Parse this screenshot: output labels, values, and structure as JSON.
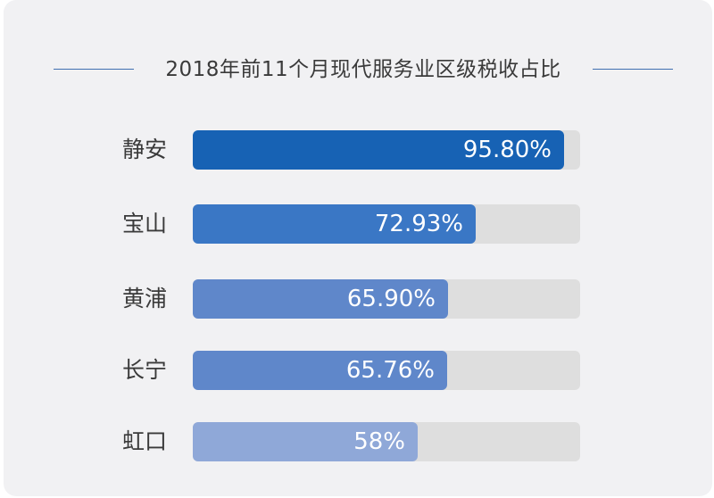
{
  "chart_data": {
    "type": "bar",
    "orientation": "horizontal",
    "title": "2018年前11个月现代服务业区级税收占比",
    "categories": [
      "静安",
      "宝山",
      "黄浦",
      "长宁",
      "虹口"
    ],
    "values": [
      95.8,
      72.93,
      65.9,
      65.76,
      58
    ],
    "value_labels": [
      "95.80%",
      "72.93%",
      "65.90%",
      "65.76%",
      "58%"
    ],
    "xlim": [
      0,
      100
    ],
    "unit": "%",
    "grid": false,
    "bar_colors": [
      "#1762b4",
      "#3a77c5",
      "#5f87ca",
      "#5f87ca",
      "#8fa8d8"
    ],
    "track_color": "#dedede",
    "title_rule_color": "#3f6fb0"
  }
}
